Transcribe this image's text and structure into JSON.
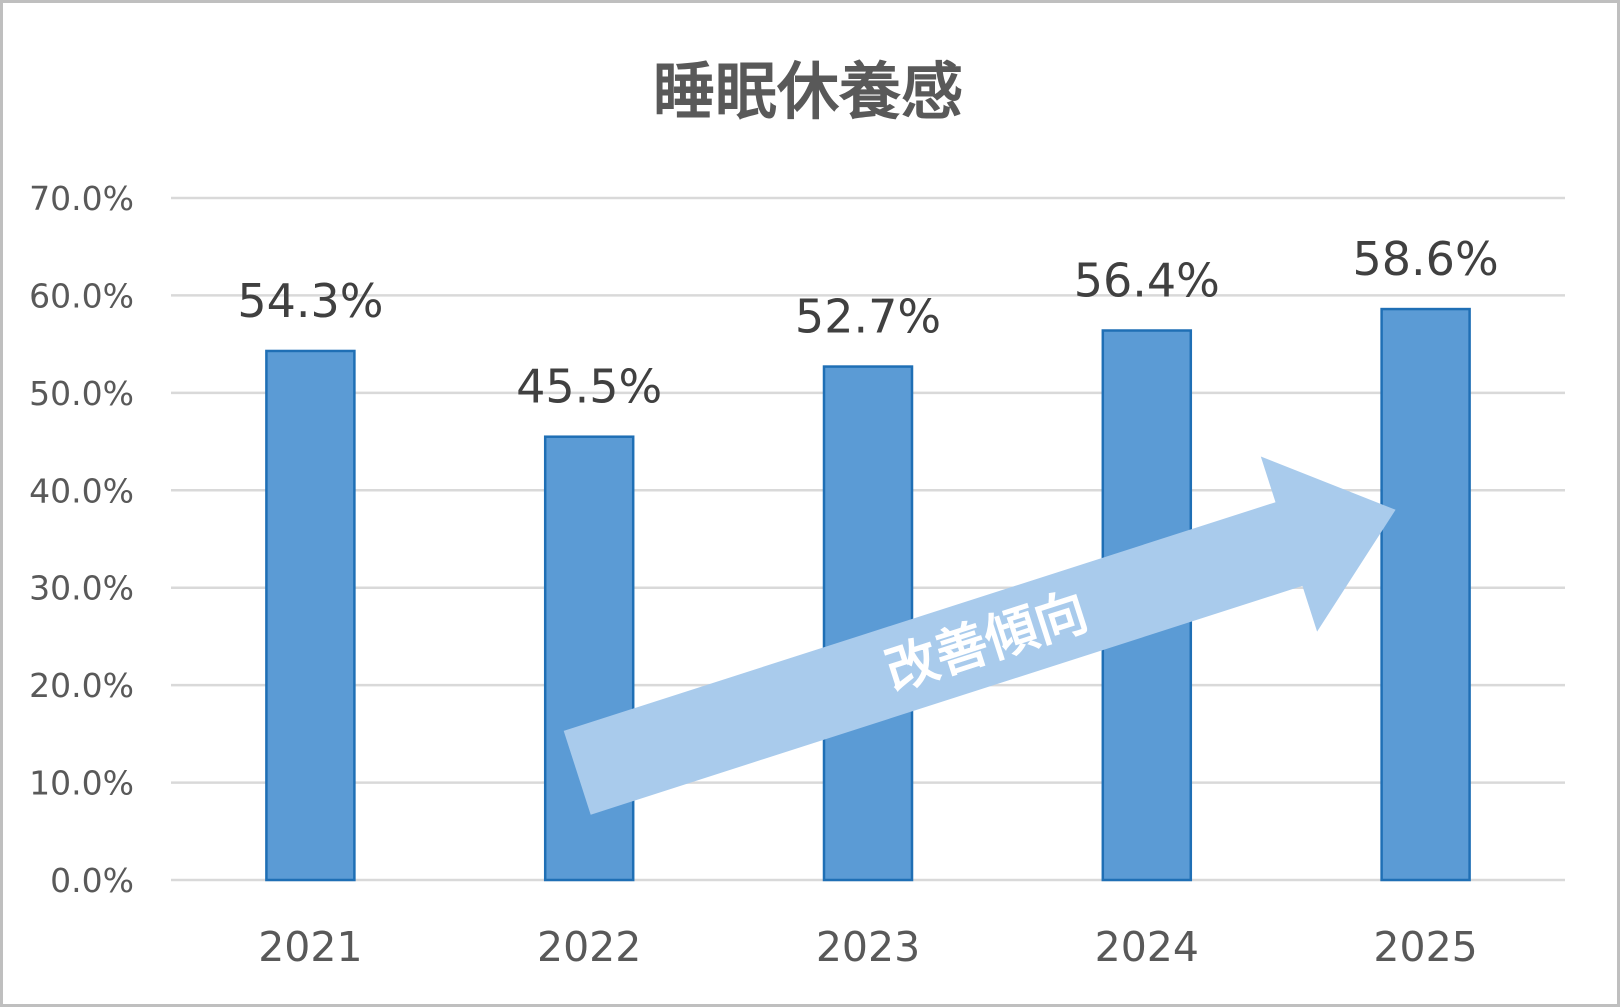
{
  "chart_data": {
    "type": "bar",
    "title": "睡眠休養感",
    "categories": [
      "2021",
      "2022",
      "2023",
      "2024",
      "2025"
    ],
    "values": [
      54.3,
      45.5,
      52.7,
      56.4,
      58.6
    ],
    "value_labels": [
      "54.3%",
      "45.5%",
      "52.7%",
      "56.4%",
      "58.6%"
    ],
    "y_ticks": [
      "0.0%",
      "10.0%",
      "20.0%",
      "30.0%",
      "40.0%",
      "50.0%",
      "60.0%",
      "70.0%"
    ],
    "ylim": [
      0,
      70
    ],
    "grid": true,
    "bar_color": "#5b9bd5",
    "bar_border_color": "#1f6fb5",
    "annotation": {
      "text": "改善傾向",
      "color": "#a9cbec",
      "shape": "arrow",
      "from": {
        "category": "2022",
        "value": 11
      },
      "to": {
        "category": "2025",
        "value": 38
      }
    }
  }
}
